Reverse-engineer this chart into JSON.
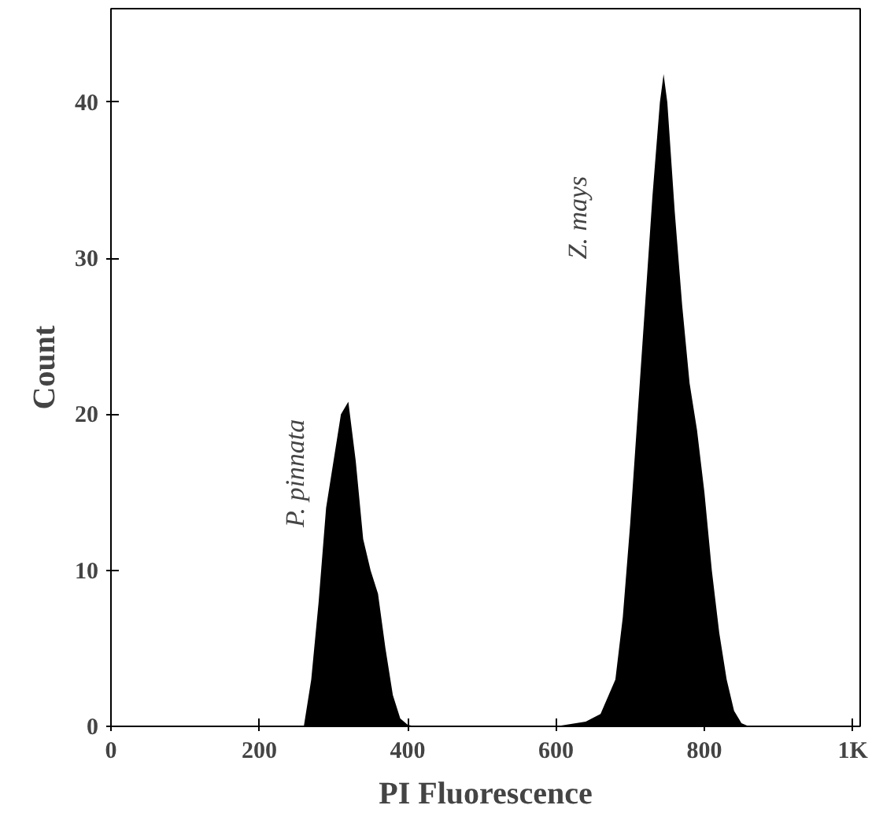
{
  "chart_data": {
    "type": "area",
    "xlabel": "PI Fluorescence",
    "ylabel": "Count",
    "x": [
      0,
      260,
      270,
      280,
      290,
      300,
      310,
      320,
      330,
      340,
      350,
      360,
      370,
      380,
      390,
      400,
      410,
      600,
      640,
      660,
      680,
      690,
      700,
      710,
      720,
      730,
      740,
      745,
      750,
      760,
      770,
      780,
      790,
      800,
      810,
      820,
      830,
      840,
      850,
      860,
      1000
    ],
    "series": [
      {
        "color": "#000000",
        "values": [
          0,
          0,
          3,
          8,
          14,
          17,
          20,
          20.8,
          17,
          12,
          10,
          8.5,
          5,
          2,
          0.5,
          0.1,
          0,
          0,
          0.3,
          0.8,
          3,
          7,
          13,
          20,
          27,
          34,
          40,
          41.8,
          40,
          33,
          27,
          22,
          19,
          15,
          10,
          6,
          3,
          1,
          0.2,
          0,
          0
        ]
      }
    ],
    "xlim": [
      0,
      1010
    ],
    "ylim": [
      0,
      46
    ],
    "xticks": [
      0,
      200,
      400,
      600,
      800,
      {
        "value": 1000,
        "label": "1K"
      }
    ],
    "yticks": [
      0,
      10,
      20,
      30,
      40
    ],
    "grid": false,
    "annotations": [
      "P. pinnata",
      "Z. mays"
    ]
  }
}
